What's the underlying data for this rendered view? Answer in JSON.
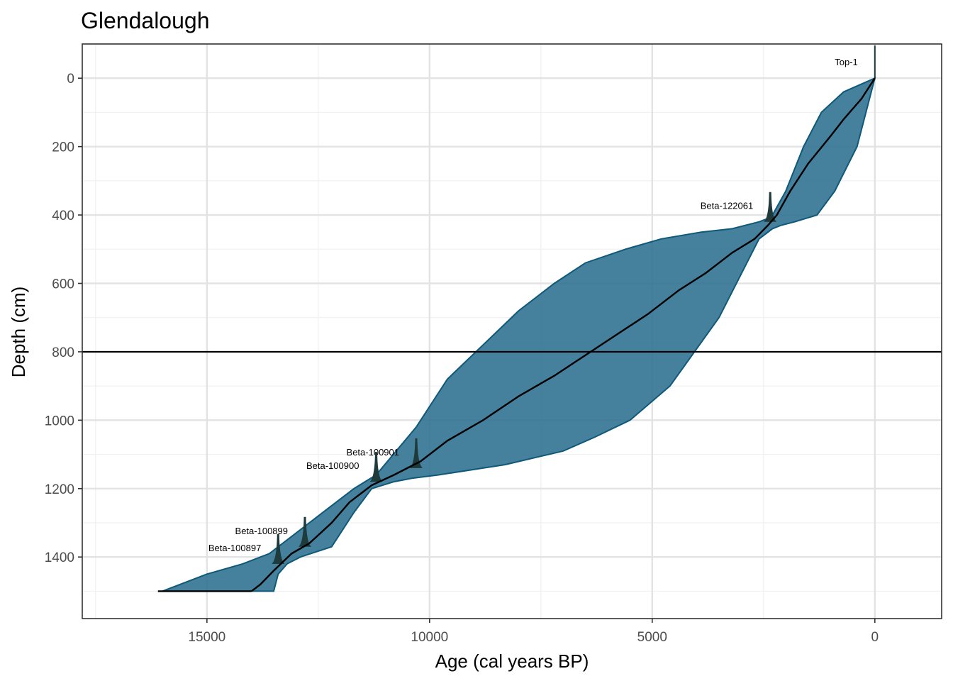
{
  "chart_data": {
    "type": "area",
    "title": "Glendalough",
    "xlabel": "Age (cal years BP)",
    "ylabel": "Depth (cm)",
    "x_reversed": true,
    "y_reversed": true,
    "xlim": [
      17800,
      -1500
    ],
    "ylim": [
      -100,
      1580
    ],
    "x_ticks": [
      15000,
      10000,
      5000,
      0
    ],
    "x_tick_labels": [
      "15000",
      "10000",
      "5000",
      "0"
    ],
    "x_minor_ticks": [
      17500,
      12500,
      7500,
      2500
    ],
    "y_ticks": [
      0,
      200,
      400,
      600,
      800,
      1000,
      1200,
      1400
    ],
    "y_tick_labels": [
      "0",
      "200",
      "400",
      "600",
      "800",
      "1000",
      "1200",
      "1400"
    ],
    "y_minor_ticks": [
      -100,
      100,
      300,
      500,
      700,
      900,
      1100,
      1300,
      1500
    ],
    "grid": true,
    "hline": 800,
    "colors": {
      "band_fill": "#2b6e8f",
      "band_stroke": "#0f5878",
      "date_fill": "#1e3a3a",
      "median": "#000000",
      "grid_major": "#e3e3e3",
      "grid_minor": "#f0f0f0",
      "hline": "#000000"
    },
    "series": [
      {
        "x": [
          0,
          700,
          1200,
          1600,
          2000,
          2300,
          2400,
          2600,
          3200,
          3900,
          4800,
          5600,
          6500,
          7200,
          8000,
          8800,
          9600,
          10300,
          11200,
          11700,
          12300,
          13000,
          13600,
          14200,
          15000,
          15800,
          16000
        ],
        "y": [
          0,
          40,
          100,
          200,
          330,
          400,
          410,
          420,
          440,
          450,
          470,
          500,
          540,
          600,
          680,
          780,
          880,
          1020,
          1160,
          1200,
          1260,
          1330,
          1390,
          1420,
          1450,
          1490,
          1500
        ]
      },
      {
        "x": [
          0,
          400,
          900,
          1300,
          1800,
          2100,
          2300,
          2600,
          3500,
          4600,
          5500,
          6300,
          7000,
          8300,
          9800,
          10400,
          10800,
          11300,
          11700,
          12200,
          12900,
          13200,
          13400,
          13500
        ],
        "y": [
          0,
          200,
          330,
          400,
          420,
          430,
          440,
          470,
          700,
          900,
          1000,
          1050,
          1090,
          1130,
          1160,
          1170,
          1180,
          1200,
          1270,
          1370,
          1400,
          1420,
          1450,
          1500
        ]
      },
      {
        "x": [
          0,
          300,
          700,
          1000,
          1500,
          1900,
          2200,
          2400,
          2700,
          3200,
          3800,
          4400,
          5100,
          5800,
          6500,
          7200,
          8000,
          8800,
          9600,
          10200,
          10800,
          11300,
          11800,
          12200,
          12700,
          13100,
          13500,
          13800,
          14000
        ],
        "y": [
          0,
          60,
          120,
          170,
          250,
          330,
          400,
          430,
          470,
          510,
          570,
          620,
          690,
          750,
          810,
          870,
          930,
          1000,
          1060,
          1120,
          1160,
          1190,
          1240,
          1300,
          1360,
          1390,
          1440,
          1480,
          1500
        ]
      }
    ],
    "dates": [
      {
        "label": "Top-1",
        "age": 0,
        "depth": 0
      },
      {
        "label": "Beta-122061",
        "age": 2350,
        "depth": 420
      },
      {
        "label": "Beta-100901",
        "age": 10300,
        "depth": 1140
      },
      {
        "label": "Beta-100900",
        "age": 11200,
        "depth": 1180
      },
      {
        "label": "Beta-100899",
        "age": 12800,
        "depth": 1370
      },
      {
        "label": "Beta-100897",
        "age": 13400,
        "depth": 1420
      }
    ]
  }
}
